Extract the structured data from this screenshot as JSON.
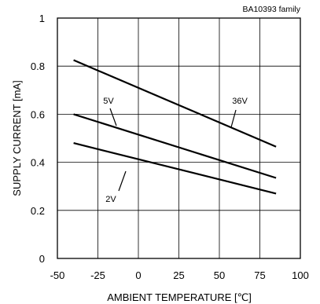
{
  "chart_data": {
    "type": "line",
    "title": "",
    "annotation": "BA10393 family",
    "xlabel": "AMBIENT TEMPERATURE [℃]",
    "ylabel": "SUPPLY CURRENT [mA]",
    "xlim": [
      -50,
      100
    ],
    "ylim": [
      0,
      1
    ],
    "x_ticks": [
      "-50",
      "-25",
      "0",
      "25",
      "50",
      "75",
      "100"
    ],
    "y_ticks": [
      "0",
      "0.2",
      "0.4",
      "0.6",
      "0.8",
      "1"
    ],
    "grid": true,
    "series": [
      {
        "name": "36V",
        "x": [
          -40,
          85
        ],
        "y": [
          0.825,
          0.465
        ],
        "color": "#000000"
      },
      {
        "name": "5V",
        "x": [
          -40,
          85
        ],
        "y": [
          0.6,
          0.335
        ],
        "color": "#000000"
      },
      {
        "name": "2V",
        "x": [
          -40,
          85
        ],
        "y": [
          0.48,
          0.27
        ],
        "color": "#000000"
      }
    ]
  }
}
